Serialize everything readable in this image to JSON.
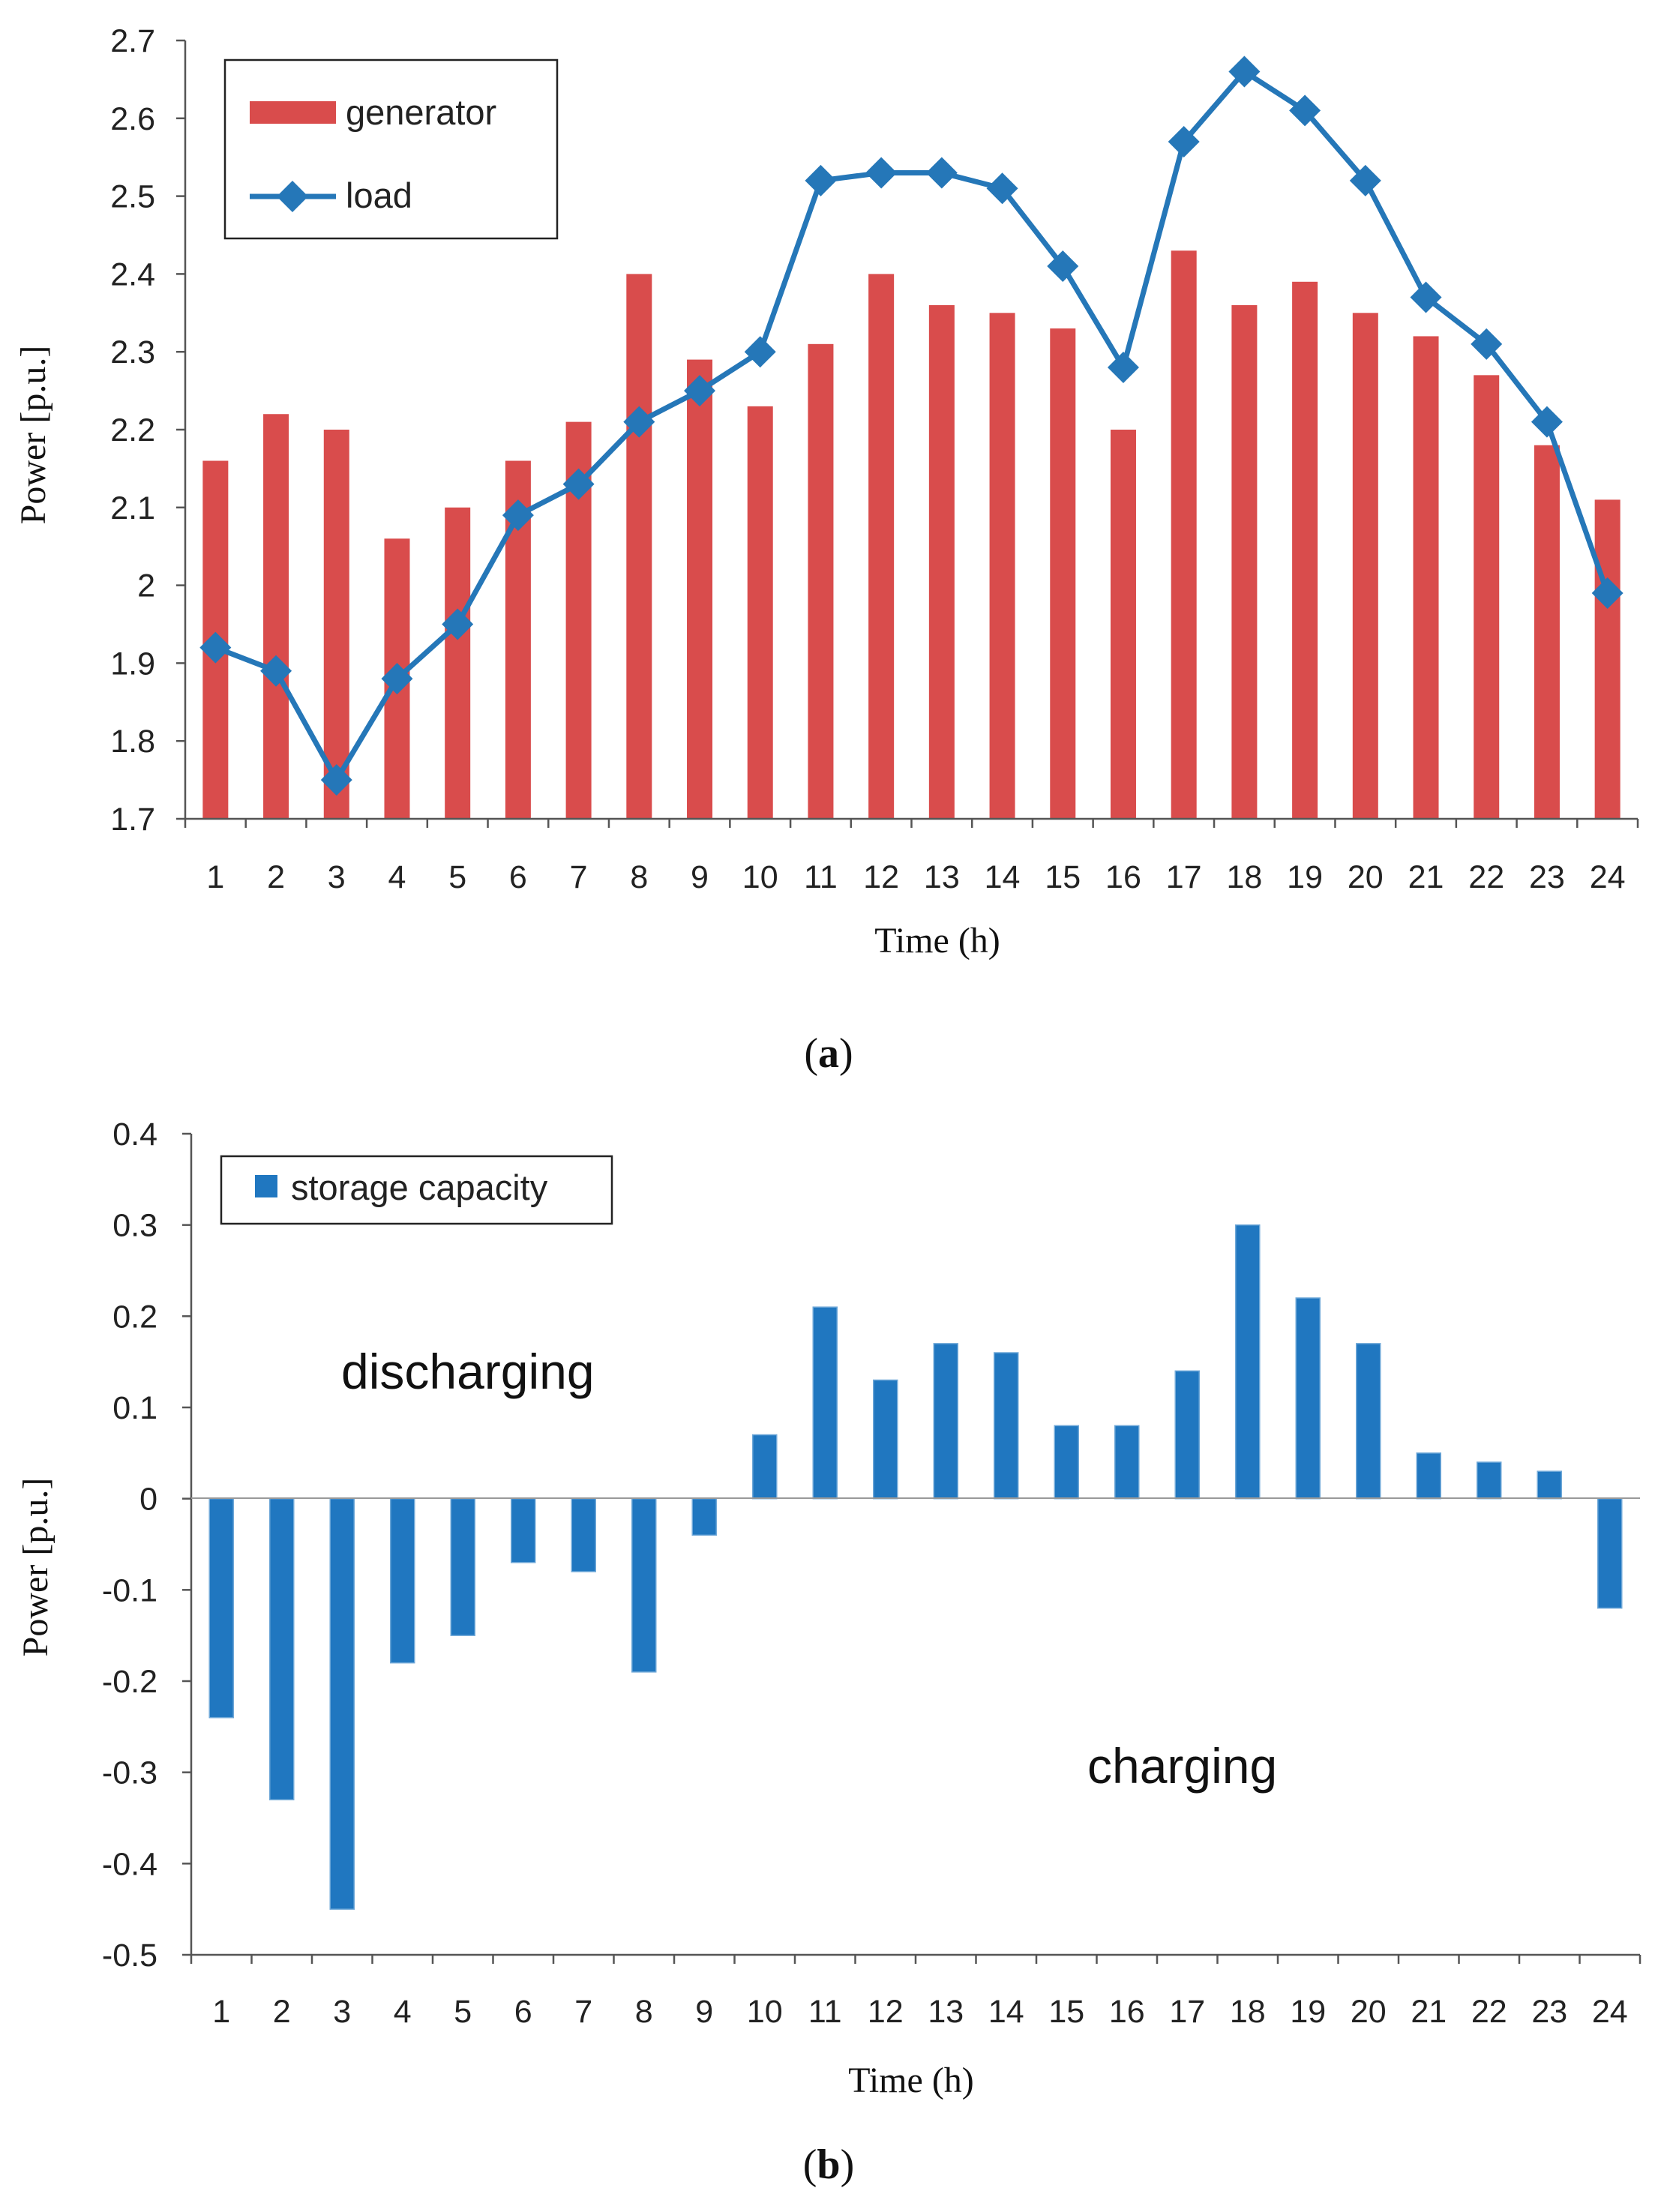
{
  "chart_data": [
    {
      "type": "bar",
      "panel_label": "a",
      "title": "",
      "xlabel": "Time (h)",
      "ylabel": "Power [p.u.]",
      "ylim": [
        1.7,
        2.7
      ],
      "ytick_step": 0.1,
      "yticks": [
        "1.7",
        "1.8",
        "1.9",
        "2",
        "2.1",
        "2.2",
        "2.3",
        "2.4",
        "2.5",
        "2.6",
        "2.7"
      ],
      "categories": [
        "1",
        "2",
        "3",
        "4",
        "5",
        "6",
        "7",
        "8",
        "9",
        "10",
        "11",
        "12",
        "13",
        "14",
        "15",
        "16",
        "17",
        "18",
        "19",
        "20",
        "21",
        "22",
        "23",
        "24"
      ],
      "series": [
        {
          "name": "generator",
          "kind": "bar",
          "color": "#d94c4c",
          "values": [
            2.16,
            2.22,
            2.2,
            2.06,
            2.1,
            2.16,
            2.21,
            2.4,
            2.29,
            2.23,
            2.31,
            2.4,
            2.36,
            2.35,
            2.33,
            2.2,
            2.43,
            2.36,
            2.39,
            2.35,
            2.32,
            2.27,
            2.18,
            2.11
          ]
        },
        {
          "name": "load",
          "kind": "line",
          "marker": "diamond",
          "color": "#2577b8",
          "values": [
            1.92,
            1.89,
            1.75,
            1.88,
            1.95,
            2.09,
            2.13,
            2.21,
            2.25,
            2.3,
            2.52,
            2.53,
            2.53,
            2.51,
            2.41,
            2.28,
            2.57,
            2.66,
            2.61,
            2.52,
            2.37,
            2.31,
            2.21,
            1.99
          ]
        }
      ],
      "legend_position": "top-left"
    },
    {
      "type": "bar",
      "panel_label": "b",
      "title": "",
      "xlabel": "Time (h)",
      "ylabel": "Power [p.u.]",
      "ylim": [
        -0.5,
        0.4
      ],
      "yticks": [
        "-0.5",
        "-0.4",
        "-0.3",
        "-0.2",
        "-0.1",
        "0",
        "0.1",
        "0.2",
        "0.3",
        "0.4"
      ],
      "categories": [
        "1",
        "2",
        "3",
        "4",
        "5",
        "6",
        "7",
        "8",
        "9",
        "10",
        "11",
        "12",
        "13",
        "14",
        "15",
        "16",
        "17",
        "18",
        "19",
        "20",
        "21",
        "22",
        "23",
        "24"
      ],
      "series": [
        {
          "name": "storage capacity",
          "kind": "bar",
          "color": "#2077c0",
          "values": [
            -0.24,
            -0.33,
            -0.45,
            -0.18,
            -0.15,
            -0.07,
            -0.08,
            -0.19,
            -0.04,
            0.07,
            0.21,
            0.13,
            0.17,
            0.16,
            0.08,
            0.08,
            0.14,
            0.3,
            0.22,
            0.17,
            0.05,
            0.04,
            0.03,
            -0.12
          ]
        }
      ],
      "annotations": [
        "discharging",
        "charging"
      ],
      "legend_position": "top-left"
    }
  ]
}
